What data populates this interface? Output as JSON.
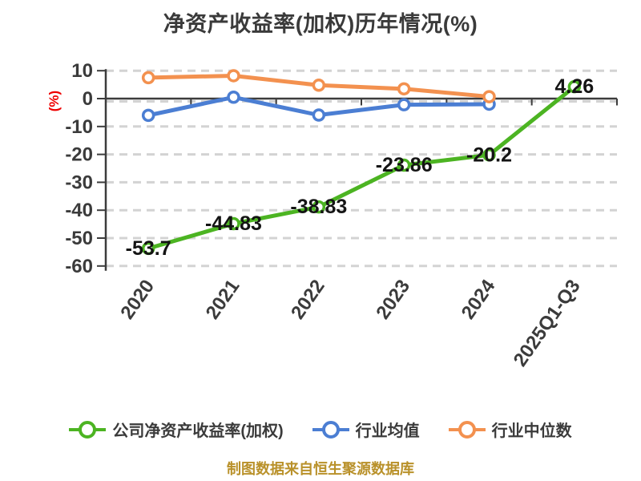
{
  "title": "净资产收益率(加权)历年情况(%)",
  "watermark": {
    "text": "制图数据来自恒生聚源数据库",
    "color": "#b9912a"
  },
  "chart_data": {
    "type": "line",
    "title": "净资产收益率(加权)历年情况(%)",
    "categories": [
      "2020",
      "2021",
      "2022",
      "2023",
      "2024",
      "2025Q1-Q3"
    ],
    "series": [
      {
        "key": "company",
        "name": "公司净资产收益率(加权)",
        "color": "#4cb422",
        "values": [
          -53.7,
          -44.83,
          -38.83,
          -23.86,
          -20.2,
          4.26
        ],
        "labels": [
          "-53.7",
          "-44.83",
          "-38.83",
          "-23.86",
          "-20.2",
          "4.26"
        ]
      },
      {
        "key": "industry-mean",
        "name": "行业均值",
        "color": "#4b7ed3",
        "values": [
          -6,
          0.5,
          -5.9,
          -2.2,
          -2,
          null
        ],
        "labels": []
      },
      {
        "key": "industry-median",
        "name": "行业中位数",
        "color": "#f3914f",
        "values": [
          7.5,
          8.2,
          4.8,
          3.5,
          0.7,
          null
        ],
        "labels": []
      }
    ],
    "y_axis": {
      "name": "(%)",
      "name_color": "#ee0000",
      "ticks": [
        10,
        0,
        -10,
        -20,
        -30,
        -40,
        -50,
        -60
      ],
      "min": -60,
      "max": 10
    },
    "ylim": [
      -60,
      10
    ],
    "grid": "horizontal dashed",
    "legend_position": "bottom",
    "colors": {
      "grid_line": "#d3d3d3",
      "axis_line": "#3c3c3c",
      "tick_label": "#3b3b3b",
      "data_label": "#141414",
      "marker_fill": "#ffffff"
    }
  }
}
